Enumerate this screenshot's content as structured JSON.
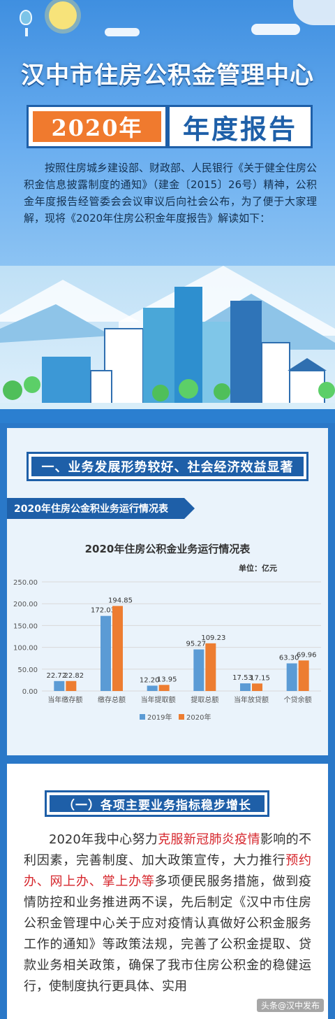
{
  "header": {
    "title": "汉中市住房公积金管理中心",
    "year_label": "2020年",
    "report_label": "年度报告"
  },
  "intro": {
    "text": "按照住房城乡建设部、财政部、人民银行《关于健全住房公积金信息披露制度的通知》（建金〔2015〕26号）精神，公积金年度报告经管委会会议审议后向社会公布，为了便于大家理解，现将《2020年住房公积金年度报告》解读如下："
  },
  "section1": {
    "title": "一、业务发展形势较好、社会经济效益显著",
    "ribbon": "2020年住房公金积业务运行情况表"
  },
  "chart_data": {
    "type": "bar",
    "title": "2020年住房公积金业务运行情况表",
    "unit": "单位：亿元",
    "categories": [
      "当年缴存额",
      "缴存总额",
      "当年提取额",
      "提取总额",
      "当年放贷额",
      "个贷余额"
    ],
    "series": [
      {
        "name": "2019年",
        "color": "#5b9bd5",
        "values": [
          22.72,
          172.03,
          12.2,
          95.27,
          17.53,
          63.3
        ]
      },
      {
        "name": "2020年",
        "color": "#ed7d31",
        "values": [
          22.82,
          194.85,
          13.95,
          109.23,
          17.15,
          69.96
        ]
      }
    ],
    "value_labels": [
      [
        "22.72",
        "172.03",
        "12.20",
        "95.27",
        "17.53",
        "63.30"
      ],
      [
        "22.82",
        "194.85",
        "13.95",
        "109.23",
        "17.15",
        "69.96"
      ]
    ],
    "yticks": [
      "0.00",
      "50.00",
      "100.00",
      "150.00",
      "200.00",
      "250.00"
    ],
    "ylim": [
      0,
      250
    ],
    "legend": "bottom",
    "grid": true
  },
  "section2": {
    "title": "（一）各项主要业务指标稳步增长",
    "paragraph": [
      {
        "t": "2020年我中心努力",
        "hl": false
      },
      {
        "t": "克服新冠肺炎疫情",
        "hl": true
      },
      {
        "t": "影响的不利因素，完善制度、加大政策宣传，大力推行",
        "hl": false
      },
      {
        "t": "预约办、网上办、掌上办等",
        "hl": true
      },
      {
        "t": "多项便民服务措施，做到疫情防控和业务推进两不误，先后制定《汉中市住房公积金管理中心关于应对疫情认真做好公积金服务工作的通知》等政策法规，完善了公积金提取、贷款业务相关政策，确保了我市住房公积金的稳健运行，使制度执行更具体、实用",
        "hl": false
      }
    ]
  },
  "watermark": "头条@汉中发布"
}
